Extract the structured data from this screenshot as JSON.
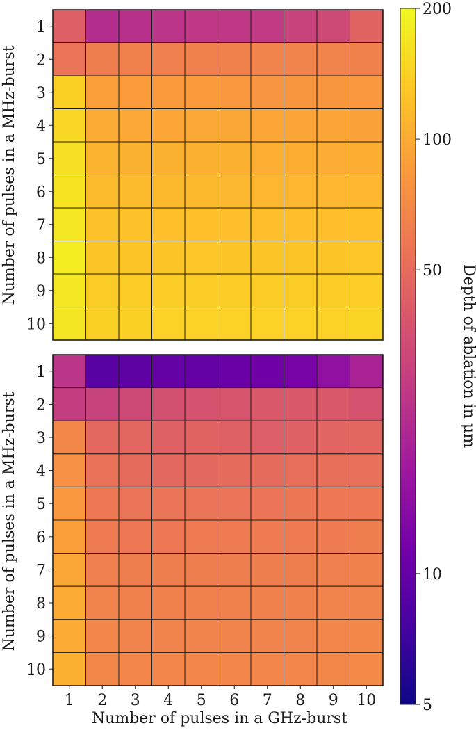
{
  "chart_data": [
    {
      "type": "heatmap",
      "xlabel": "",
      "ylabel": "Number of pulses in a MHz-burst",
      "x_categories": [
        "1",
        "2",
        "3",
        "4",
        "5",
        "6",
        "7",
        "8",
        "9",
        "10"
      ],
      "y_categories": [
        "1",
        "2",
        "3",
        "4",
        "5",
        "6",
        "7",
        "8",
        "9",
        "10"
      ],
      "values": [
        [
          43,
          23,
          24,
          25,
          26,
          26,
          27,
          30,
          33,
          45
        ],
        [
          55,
          62,
          64,
          63,
          64,
          64,
          66,
          66,
          66,
          64
        ],
        [
          140,
          88,
          85,
          84,
          84,
          82,
          79,
          80,
          80,
          82
        ],
        [
          150,
          100,
          96,
          94,
          96,
          95,
          94,
          92,
          92,
          90
        ],
        [
          160,
          108,
          106,
          106,
          105,
          104,
          103,
          102,
          101,
          102
        ],
        [
          166,
          115,
          114,
          113,
          113,
          112,
          111,
          110,
          110,
          111
        ],
        [
          172,
          123,
          122,
          121,
          121,
          120,
          120,
          120,
          120,
          121
        ],
        [
          180,
          128,
          128,
          128,
          129,
          128,
          128,
          127,
          127,
          130
        ],
        [
          172,
          135,
          135,
          136,
          135,
          135,
          135,
          135,
          135,
          138
        ],
        [
          170,
          140,
          140,
          142,
          142,
          142,
          142,
          142,
          142,
          145
        ]
      ]
    },
    {
      "type": "heatmap",
      "xlabel": "Number of pulses in a GHz-burst",
      "ylabel": "Number of pulses in a MHz-burst",
      "x_categories": [
        "1",
        "2",
        "3",
        "4",
        "5",
        "6",
        "7",
        "8",
        "9",
        "10"
      ],
      "y_categories": [
        "1",
        "2",
        "3",
        "4",
        "5",
        "6",
        "7",
        "8",
        "9",
        "10"
      ],
      "values": [
        [
          25,
          9,
          9.5,
          10,
          10,
          10.5,
          11,
          12,
          15,
          20
        ],
        [
          28,
          30,
          33,
          36,
          37,
          38,
          40,
          40,
          40,
          37
        ],
        [
          68,
          48,
          47,
          44,
          45,
          44,
          42,
          44,
          46,
          47
        ],
        [
          75,
          54,
          50,
          48,
          48,
          50,
          50,
          51,
          52,
          53
        ],
        [
          82,
          58,
          55,
          55,
          55,
          55,
          56,
          57,
          58,
          58
        ],
        [
          88,
          60,
          58,
          58,
          60,
          60,
          60,
          60,
          60,
          62
        ],
        [
          95,
          63,
          62,
          62,
          62,
          62,
          62,
          62,
          63,
          64
        ],
        [
          100,
          65,
          64,
          64,
          64,
          64,
          64,
          64,
          65,
          66
        ],
        [
          100,
          67,
          66,
          66,
          66,
          66,
          66,
          66,
          67,
          68
        ],
        [
          105,
          68,
          67,
          67,
          67,
          67,
          67,
          67,
          68,
          70
        ]
      ]
    }
  ],
  "colorbar": {
    "label": "Depth of ablation in μm",
    "scale": "log",
    "range": [
      5,
      200
    ],
    "tick_values": [
      5,
      10,
      50,
      100,
      200
    ],
    "tick_labels": [
      "5",
      "10",
      "50",
      "100",
      "200"
    ],
    "colormap": [
      "#0d0887",
      "#46039f",
      "#7201a8",
      "#9c179e",
      "#bd3786",
      "#d8576b",
      "#ed7953",
      "#fb9f3a",
      "#fdca26",
      "#f0f921"
    ]
  }
}
